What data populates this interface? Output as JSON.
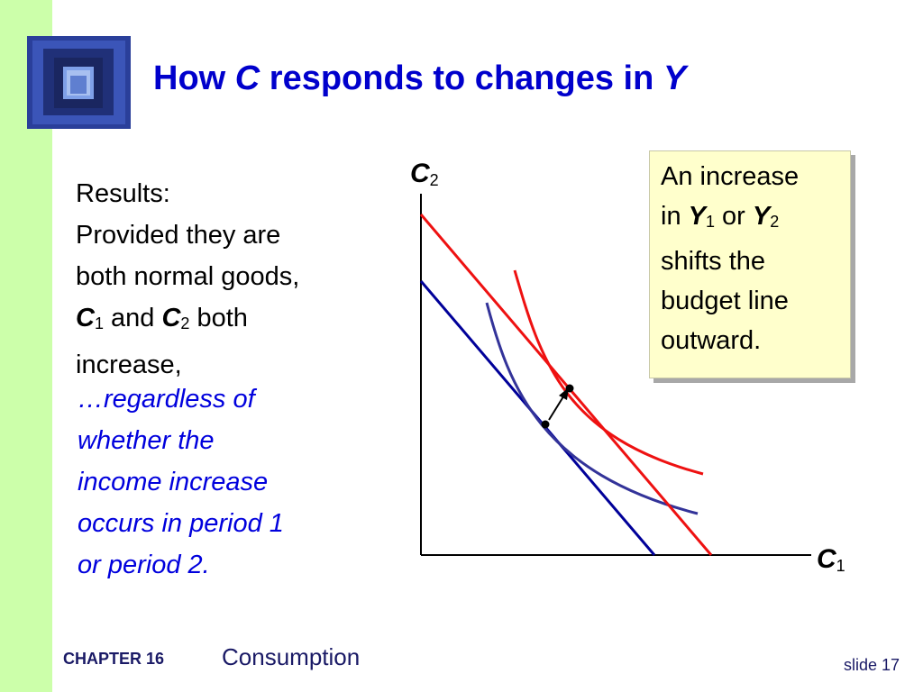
{
  "title": {
    "part1": "How ",
    "var_c": "C",
    "part2": " responds to changes in ",
    "var_y": "Y"
  },
  "results": {
    "line1": "Results:",
    "line2": "Provided they are",
    "line3": "both normal goods,",
    "c1_var": "C",
    "c1_sub": "1",
    "and_text": " and ",
    "c2_var": "C",
    "c2_sub": "2",
    "both_text": " both",
    "line5": "increase,"
  },
  "regardless": {
    "line1": "…regardless of",
    "line2": "whether the",
    "line3": "income increase",
    "line4": "occurs in period 1",
    "line5": "or period 2."
  },
  "note": {
    "line1": "An increase",
    "in_text": "in ",
    "y1_var": "Y",
    "y1_sub": "1",
    "or_text": " or ",
    "y2_var": "Y",
    "y2_sub": "2",
    "line3": "shifts the",
    "line4": "budget line",
    "line5": "outward."
  },
  "axes": {
    "y_var": "C",
    "y_sub": "2",
    "x_var": "C",
    "x_sub": "1"
  },
  "colors": {
    "title": "#0000cc",
    "old_budget_line": "#000099",
    "old_indifference_curve": "#333399",
    "new_budget_line": "#ee1111",
    "new_indifference_curve": "#ee1111",
    "note_background": "#ffffcc",
    "left_strip": "#ccffaa"
  },
  "footer": {
    "chapter": "CHAPTER 16",
    "topic": "Consumption",
    "slide": "slide 17"
  }
}
